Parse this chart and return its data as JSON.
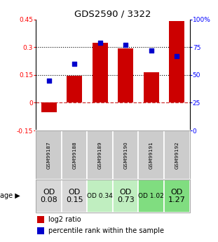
{
  "title": "GDS2590 / 3322",
  "samples": [
    "GSM99187",
    "GSM99188",
    "GSM99189",
    "GSM99190",
    "GSM99191",
    "GSM99192"
  ],
  "log2_ratio": [
    -0.05,
    0.145,
    0.325,
    0.295,
    0.165,
    0.44
  ],
  "percentile_rank": [
    45,
    60,
    79,
    77,
    72,
    67
  ],
  "bar_color": "#cc0000",
  "dot_color": "#0000cc",
  "ylim_left": [
    -0.15,
    0.45
  ],
  "ylim_right": [
    0,
    100
  ],
  "yticks_left": [
    -0.15,
    0,
    0.15,
    0.3,
    0.45
  ],
  "ytick_labels_left": [
    "-0.15",
    "0",
    "0.15",
    "0.3",
    "0.45"
  ],
  "yticks_right": [
    0,
    25,
    50,
    75,
    100
  ],
  "ytick_labels_right": [
    "0",
    "25",
    "50",
    "75",
    "100%"
  ],
  "hlines": [
    0.15,
    0.3
  ],
  "age_labels": [
    "OD\n0.08",
    "OD\n0.15",
    "OD 0.34",
    "OD\n0.73",
    "OD 1.02",
    "OD\n1.27"
  ],
  "age_bg_colors": [
    "#d8d8d8",
    "#d8d8d8",
    "#c0eec0",
    "#c0eec0",
    "#80dd80",
    "#80dd80"
  ],
  "age_fontsize": [
    8,
    8,
    6.5,
    8,
    6.5,
    8
  ],
  "sample_bg_color": "#cccccc",
  "legend_labels": [
    "log2 ratio",
    "percentile rank within the sample"
  ],
  "zero_line_color": "#cc3333",
  "bg_color": "#ffffff"
}
